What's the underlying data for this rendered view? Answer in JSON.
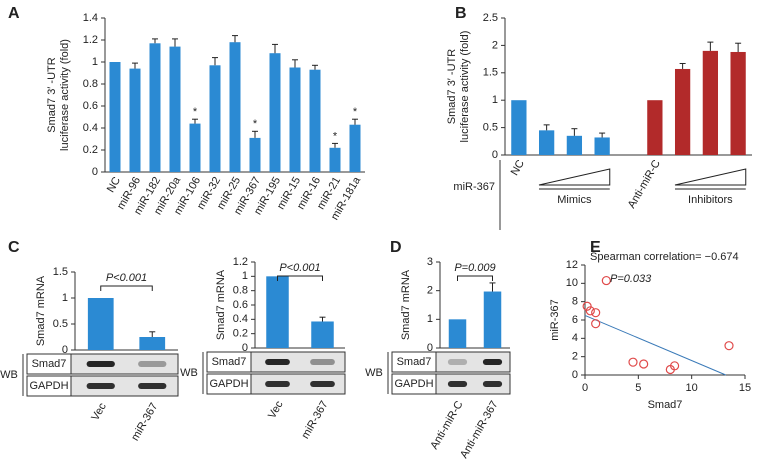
{
  "chart_data": [
    {
      "panel": "A",
      "type": "bar",
      "ylabel": [
        "Smad7 3′ -UTR",
        "luciferase activity (fold)"
      ],
      "categories": [
        "NC",
        "miR-96",
        "miR-182",
        "miR-20a",
        "miR-106",
        "miR-32",
        "miR-25",
        "miR-367",
        "miR-195",
        "miR-15",
        "miR-16",
        "miR-21",
        "miR-181a"
      ],
      "values": [
        1,
        0.94,
        1.17,
        1.14,
        0.44,
        0.97,
        1.18,
        0.31,
        1.08,
        0.95,
        0.93,
        0.22,
        0.43
      ],
      "errors": [
        0,
        0.05,
        0.04,
        0.07,
        0.04,
        0.07,
        0.06,
        0.06,
        0.08,
        0.07,
        0.04,
        0.04,
        0.05
      ],
      "significance": [
        null,
        null,
        null,
        null,
        "*",
        null,
        null,
        "*",
        null,
        null,
        null,
        "*",
        "*"
      ],
      "color": "#2b8ad3",
      "ylim": [
        0,
        1.4
      ],
      "yticks": [
        0,
        0.2,
        0.4,
        0.6,
        0.8,
        1,
        1.2,
        1.4
      ]
    },
    {
      "panel": "B",
      "type": "bar",
      "ylabel": [
        "Smad7 3′ -UTR",
        "luciferase activity (fold)"
      ],
      "categories": [
        "NC",
        null,
        null,
        null,
        "Anti-miR-C",
        null,
        null,
        null
      ],
      "values": [
        1,
        0.45,
        0.35,
        0.32,
        1,
        1.57,
        1.9,
        1.88
      ],
      "errors": [
        0,
        0.1,
        0.13,
        0.08,
        0,
        0.1,
        0.16,
        0.16
      ],
      "colors": [
        "#2b8ad3",
        "#2b8ad3",
        "#2b8ad3",
        "#2b8ad3",
        "#b22a2a",
        "#b22a2a",
        "#b22a2a",
        "#b22a2a"
      ],
      "groups": [
        "Mimics",
        "Inhibitors"
      ],
      "row_label": "miR-367",
      "ylim": [
        0,
        2.5
      ],
      "yticks": [
        0,
        0.5,
        1,
        1.5,
        2,
        2.5
      ]
    },
    {
      "panel": "C",
      "type": "bar",
      "ylabel": [
        "Smad7 mRNA"
      ],
      "categories": [
        "Vec",
        "miR-367"
      ],
      "values": [
        1,
        0.25
      ],
      "errors": [
        0,
        0.1
      ],
      "color": "#2b8ad3",
      "p_value": "P<0.001",
      "blot_labels": [
        "Smad7",
        "GAPDH"
      ],
      "blot_group": "WB",
      "ylim": [
        0,
        1.5
      ],
      "yticks": [
        0,
        0.5,
        1,
        1.5
      ]
    },
    {
      "type": "bar",
      "ylabel": [
        "Smad7 mRNA"
      ],
      "categories": [
        "Vec",
        "miR-367"
      ],
      "values": [
        1,
        0.37
      ],
      "errors": [
        0,
        0.06
      ],
      "color": "#2b8ad3",
      "p_value": "P<0.001",
      "blot_labels": [
        "Smad7",
        "GAPDH"
      ],
      "blot_group": "WB",
      "ylim": [
        0,
        1.2
      ],
      "yticks": [
        0,
        0.2,
        0.4,
        0.6,
        0.8,
        1,
        1.2
      ]
    },
    {
      "panel": "D",
      "type": "bar",
      "ylabel": [
        "Smad7 mRNA"
      ],
      "categories": [
        "Anti-miR-C",
        "Anti-miR-367"
      ],
      "values": [
        1,
        1.97
      ],
      "errors": [
        0,
        0.3
      ],
      "color": "#2b8ad3",
      "p_value": "P=0.009",
      "blot_labels": [
        "Smad7",
        "GAPDH"
      ],
      "blot_group": "WB",
      "ylim": [
        0,
        3
      ],
      "yticks": [
        0,
        1,
        2,
        3
      ]
    },
    {
      "panel": "E",
      "type": "scatter",
      "xlabel": "Smad7",
      "ylabel": [
        "miR-367"
      ],
      "annotations": [
        "Spearman correlation= −0.674",
        "P=0.033"
      ],
      "x": [
        0.2,
        0.5,
        1,
        1,
        2,
        4.5,
        5.5,
        8,
        8.4,
        13.5
      ],
      "values": [
        7.5,
        7,
        6.8,
        5.6,
        10.3,
        1.4,
        1.2,
        0.6,
        1,
        3.2
      ],
      "trend_line": {
        "x": [
          0,
          13.2
        ],
        "values": [
          6.5,
          0
        ]
      },
      "color": "#e04a4a",
      "xlim": [
        0,
        15
      ],
      "xticks": [
        0,
        5,
        10,
        15
      ],
      "ylim": [
        0,
        12
      ],
      "yticks": [
        0,
        2,
        4,
        6,
        8,
        10,
        12
      ]
    }
  ]
}
